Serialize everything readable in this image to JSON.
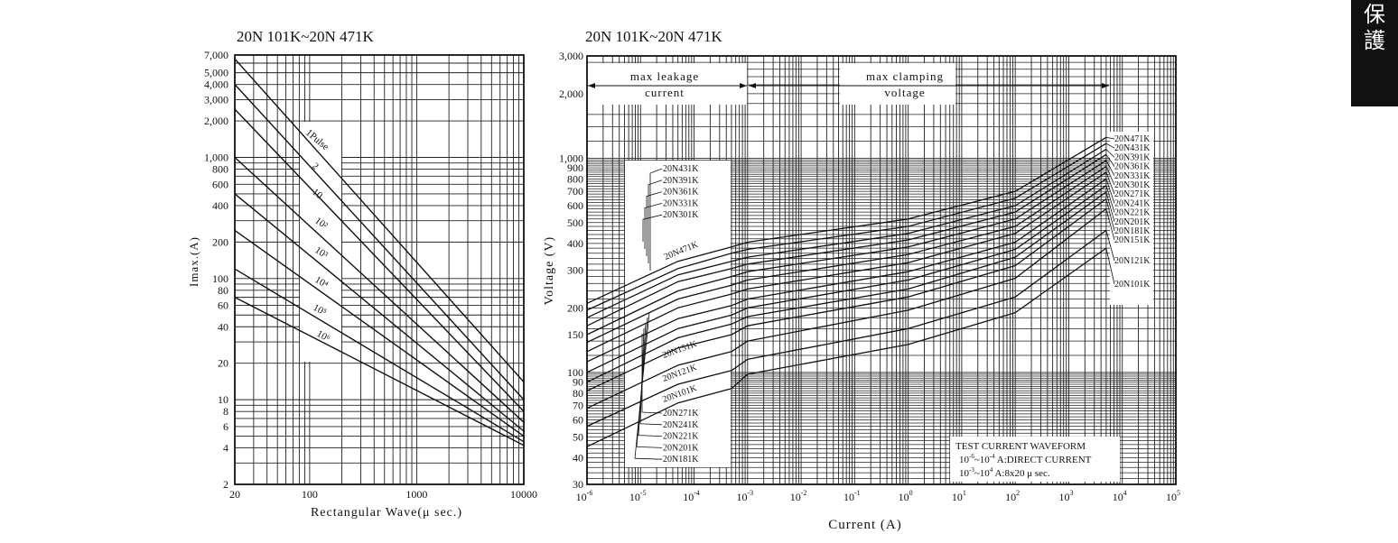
{
  "side_tab": {
    "chars": [
      "保",
      "護"
    ]
  },
  "chart_data": [
    {
      "type": "line",
      "title": "20N 101K~20N 471K",
      "xlabel": "Rectangular Wave(μ sec.)",
      "ylabel": "Imax.(A)",
      "xscale": "log",
      "yscale": "log",
      "xlim": [
        20,
        10000
      ],
      "ylim": [
        2,
        7000
      ],
      "xticks": [
        {
          "v": 20,
          "label": "20"
        },
        {
          "v": 100,
          "label": "100"
        },
        {
          "v": 1000,
          "label": "1000"
        },
        {
          "v": 10000,
          "label": "10000"
        }
      ],
      "yticks": [
        {
          "v": 7000,
          "label": "7,000"
        },
        {
          "v": 5000,
          "label": "5,000"
        },
        {
          "v": 4000,
          "label": "4,000"
        },
        {
          "v": 3000,
          "label": "3,000"
        },
        {
          "v": 2000,
          "label": "2,000"
        },
        {
          "v": 1000,
          "label": "1,000"
        },
        {
          "v": 800,
          "label": "800"
        },
        {
          "v": 600,
          "label": "600"
        },
        {
          "v": 400,
          "label": "400"
        },
        {
          "v": 200,
          "label": "200"
        },
        {
          "v": 100,
          "label": "100"
        },
        {
          "v": 80,
          "label": "80"
        },
        {
          "v": 60,
          "label": "60"
        },
        {
          "v": 40,
          "label": "40"
        },
        {
          "v": 20,
          "label": "20"
        },
        {
          "v": 10,
          "label": "10"
        },
        {
          "v": 8,
          "label": "8"
        },
        {
          "v": 6,
          "label": "6"
        },
        {
          "v": 4,
          "label": "4"
        },
        {
          "v": 2,
          "label": "2"
        }
      ],
      "series": [
        {
          "name": "1Pulse",
          "label": "1Pulse",
          "x": [
            20,
            10000
          ],
          "y": [
            6500,
            14
          ]
        },
        {
          "name": "2",
          "label": "2",
          "x": [
            20,
            10000
          ],
          "y": [
            4000,
            10
          ]
        },
        {
          "name": "10",
          "label": "10",
          "x": [
            20,
            10000
          ],
          "y": [
            2500,
            8
          ]
        },
        {
          "name": "10²",
          "label": "10²",
          "x": [
            20,
            10000
          ],
          "y": [
            1000,
            6.5
          ]
        },
        {
          "name": "10³",
          "label": "10³",
          "x": [
            20,
            10000
          ],
          "y": [
            500,
            5.5
          ]
        },
        {
          "name": "10⁴",
          "label": "10⁴",
          "x": [
            20,
            10000
          ],
          "y": [
            250,
            5
          ]
        },
        {
          "name": "10⁵",
          "label": "10⁵",
          "x": [
            20,
            10000
          ],
          "y": [
            120,
            4.5
          ]
        },
        {
          "name": "10⁶",
          "label": "10⁶",
          "x": [
            20,
            10000
          ],
          "y": [
            70,
            4.2
          ]
        }
      ]
    },
    {
      "type": "line",
      "title": "20N 101K~20N 471K",
      "xlabel": "Current (A)",
      "ylabel": "Voltage (V)",
      "xscale": "log",
      "yscale": "log",
      "xlim": [
        1e-06,
        100000
      ],
      "ylim": [
        30,
        3000
      ],
      "xticks": [
        {
          "v": 1e-06,
          "base": "10",
          "exp": "-6"
        },
        {
          "v": 1e-05,
          "base": "10",
          "exp": "-5"
        },
        {
          "v": 0.0001,
          "base": "10",
          "exp": "-4"
        },
        {
          "v": 0.001,
          "base": "10",
          "exp": "-3"
        },
        {
          "v": 0.01,
          "base": "10",
          "exp": "-2"
        },
        {
          "v": 0.1,
          "base": "10",
          "exp": "-1"
        },
        {
          "v": 1,
          "base": "10",
          "exp": "0"
        },
        {
          "v": 10,
          "base": "10",
          "exp": "1"
        },
        {
          "v": 100,
          "base": "10",
          "exp": "2"
        },
        {
          "v": 1000,
          "base": "10",
          "exp": "3"
        },
        {
          "v": 10000,
          "base": "10",
          "exp": "4"
        },
        {
          "v": 100000,
          "base": "10",
          "exp": "5"
        }
      ],
      "yticks": [
        {
          "v": 3000,
          "label": "3,000"
        },
        {
          "v": 2000,
          "label": "2,000"
        },
        {
          "v": 1000,
          "label": "1,000"
        },
        {
          "v": 900,
          "label": "900"
        },
        {
          "v": 800,
          "label": "800"
        },
        {
          "v": 700,
          "label": "700"
        },
        {
          "v": 600,
          "label": "600"
        },
        {
          "v": 500,
          "label": "500"
        },
        {
          "v": 400,
          "label": "400"
        },
        {
          "v": 300,
          "label": "300"
        },
        {
          "v": 200,
          "label": "200"
        },
        {
          "v": 150,
          "label": "150"
        },
        {
          "v": 100,
          "label": "100"
        },
        {
          "v": 90,
          "label": "90"
        },
        {
          "v": 80,
          "label": "80"
        },
        {
          "v": 70,
          "label": "70"
        },
        {
          "v": 60,
          "label": "60"
        },
        {
          "v": 50,
          "label": "50"
        },
        {
          "v": 40,
          "label": "40"
        },
        {
          "v": 30,
          "label": "30"
        }
      ],
      "region_labels": [
        {
          "lines": [
            "max leakage",
            "current"
          ]
        },
        {
          "lines": [
            "max clamping",
            "voltage"
          ]
        }
      ],
      "annotation": {
        "lines": [
          {
            "text": "TEST CURRENT WAVEFORM"
          },
          {
            "base1": "10",
            "exp1": "-6",
            "mid": "~10",
            "exp2": "-4",
            "text": " A:DIRECT CURRENT"
          },
          {
            "base1": "10",
            "exp1": "-3",
            "mid": "~10",
            "exp2": "4",
            "text": " A:8x20 μ sec."
          }
        ]
      },
      "leakage_labels_top": [
        "20N431K",
        "20N391K",
        "20N361K",
        "20N331K",
        "20N301K"
      ],
      "leakage_label_471": "20N471K",
      "leakage_labels_low": [
        "20N151K",
        "20N121K",
        "20N101K"
      ],
      "leakage_labels_bottom": [
        "20N271K",
        "20N241K",
        "20N221K",
        "20N201K",
        "20N181K"
      ],
      "series": [
        {
          "name": "20N471K",
          "leak": [
            210,
            330,
            385
          ],
          "clamp": [
            405,
            520,
            700,
            1250
          ]
        },
        {
          "name": "20N431K",
          "leak": [
            195,
            305,
            360
          ],
          "clamp": [
            375,
            480,
            650,
            1170
          ]
        },
        {
          "name": "20N391K",
          "leak": [
            180,
            285,
            330
          ],
          "clamp": [
            345,
            445,
            600,
            1100
          ]
        },
        {
          "name": "20N361K",
          "leak": [
            165,
            265,
            305
          ],
          "clamp": [
            320,
            415,
            560,
            1040
          ]
        },
        {
          "name": "20N331K",
          "leak": [
            150,
            240,
            280
          ],
          "clamp": [
            295,
            385,
            520,
            975
          ]
        },
        {
          "name": "20N301K",
          "leak": [
            138,
            220,
            255
          ],
          "clamp": [
            270,
            355,
            480,
            915
          ]
        },
        {
          "name": "20N271K",
          "leak": [
            125,
            200,
            232
          ],
          "clamp": [
            245,
            325,
            445,
            860
          ]
        },
        {
          "name": "20N241K",
          "leak": [
            112,
            178,
            205
          ],
          "clamp": [
            220,
            295,
            405,
            800
          ]
        },
        {
          "name": "20N221K",
          "leak": [
            100,
            160,
            185
          ],
          "clamp": [
            200,
            270,
            375,
            745
          ]
        },
        {
          "name": "20N201K",
          "leak": [
            90,
            145,
            168
          ],
          "clamp": [
            182,
            245,
            345,
            695
          ]
        },
        {
          "name": "20N181K",
          "leak": [
            82,
            130,
            150
          ],
          "clamp": [
            165,
            225,
            315,
            645
          ]
        },
        {
          "name": "20N151K",
          "leak": [
            68,
            108,
            125
          ],
          "clamp": [
            140,
            195,
            275,
            580
          ]
        },
        {
          "name": "20N121K",
          "leak": [
            56,
            88,
            102
          ],
          "clamp": [
            115,
            160,
            225,
            460
          ]
        },
        {
          "name": "20N101K",
          "leak": [
            45,
            72,
            84
          ],
          "clamp": [
            98,
            135,
            190,
            380
          ]
        }
      ]
    }
  ]
}
